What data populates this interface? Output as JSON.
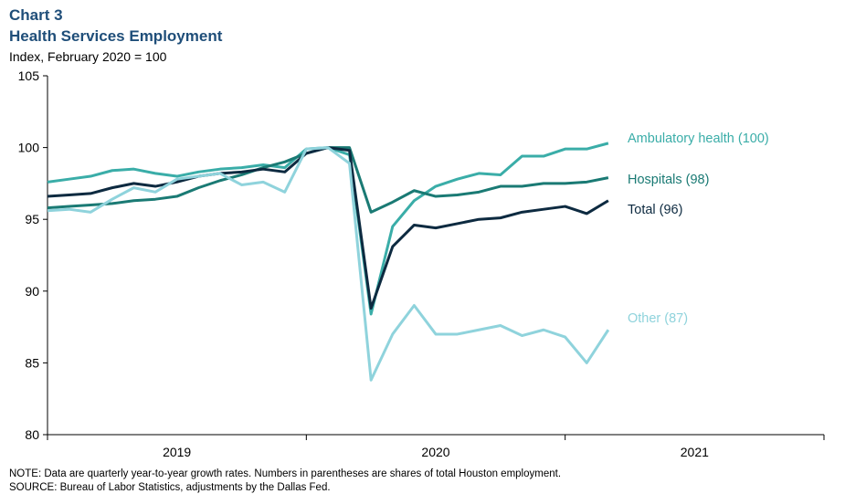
{
  "chart_data": {
    "type": "line",
    "title": "Chart 3",
    "subtitle": "Health Services Employment",
    "y_label": "Index, February 2020 = 100",
    "note": "NOTE: Data are quarterly year-to-year growth rates. Numbers in parentheses are shares of total Houston employment.",
    "source": "SOURCE: Bureau of Labor Statistics, adjustments by the Dallas Fed.",
    "year_labels": [
      "2019",
      "2020",
      "2021"
    ],
    "x": [
      0,
      1,
      2,
      3,
      4,
      5,
      6,
      7,
      8,
      9,
      10,
      11,
      12,
      13,
      14,
      15,
      16,
      17,
      18,
      19,
      20,
      21,
      22,
      23,
      24,
      25,
      26
    ],
    "xlim": [
      0,
      36
    ],
    "ylim": [
      80,
      105
    ],
    "yticks": [
      80,
      85,
      90,
      95,
      100,
      105
    ],
    "grid": false,
    "series": [
      {
        "name": "Ambulatory health (100)",
        "color": "#3aada8",
        "values": [
          97.6,
          97.8,
          98.0,
          98.4,
          98.5,
          98.2,
          98.0,
          98.3,
          98.5,
          98.6,
          98.8,
          98.6,
          99.9,
          100,
          99.5,
          88.4,
          94.5,
          96.3,
          97.3,
          97.8,
          98.2,
          98.1,
          99.4,
          99.4,
          99.9,
          99.9,
          100.3
        ]
      },
      {
        "name": "Hospitals (98)",
        "color": "#1a7a74",
        "values": [
          95.8,
          95.9,
          96.0,
          96.1,
          96.3,
          96.4,
          96.6,
          97.2,
          97.7,
          98.1,
          98.6,
          99.0,
          99.6,
          100,
          100,
          95.5,
          96.2,
          97.0,
          96.6,
          96.7,
          96.9,
          97.3,
          97.3,
          97.5,
          97.5,
          97.6,
          97.9
        ]
      },
      {
        "name": "Total (96)",
        "color": "#0d2a40",
        "values": [
          96.6,
          96.7,
          96.8,
          97.2,
          97.5,
          97.3,
          97.6,
          98.0,
          98.2,
          98.3,
          98.5,
          98.3,
          99.6,
          100,
          99.8,
          88.8,
          93.1,
          94.6,
          94.4,
          94.7,
          95.0,
          95.1,
          95.5,
          95.7,
          95.9,
          95.4,
          96.3
        ]
      },
      {
        "name": "Other (87)",
        "color": "#8fd3dc",
        "values": [
          95.6,
          95.7,
          95.5,
          96.4,
          97.2,
          96.9,
          97.8,
          98.0,
          98.2,
          97.4,
          97.6,
          96.9,
          99.9,
          100,
          98.9,
          83.8,
          87.0,
          89.0,
          87.0,
          87.0,
          87.3,
          87.6,
          86.9,
          87.3,
          86.8,
          85.0,
          87.3
        ]
      }
    ]
  }
}
